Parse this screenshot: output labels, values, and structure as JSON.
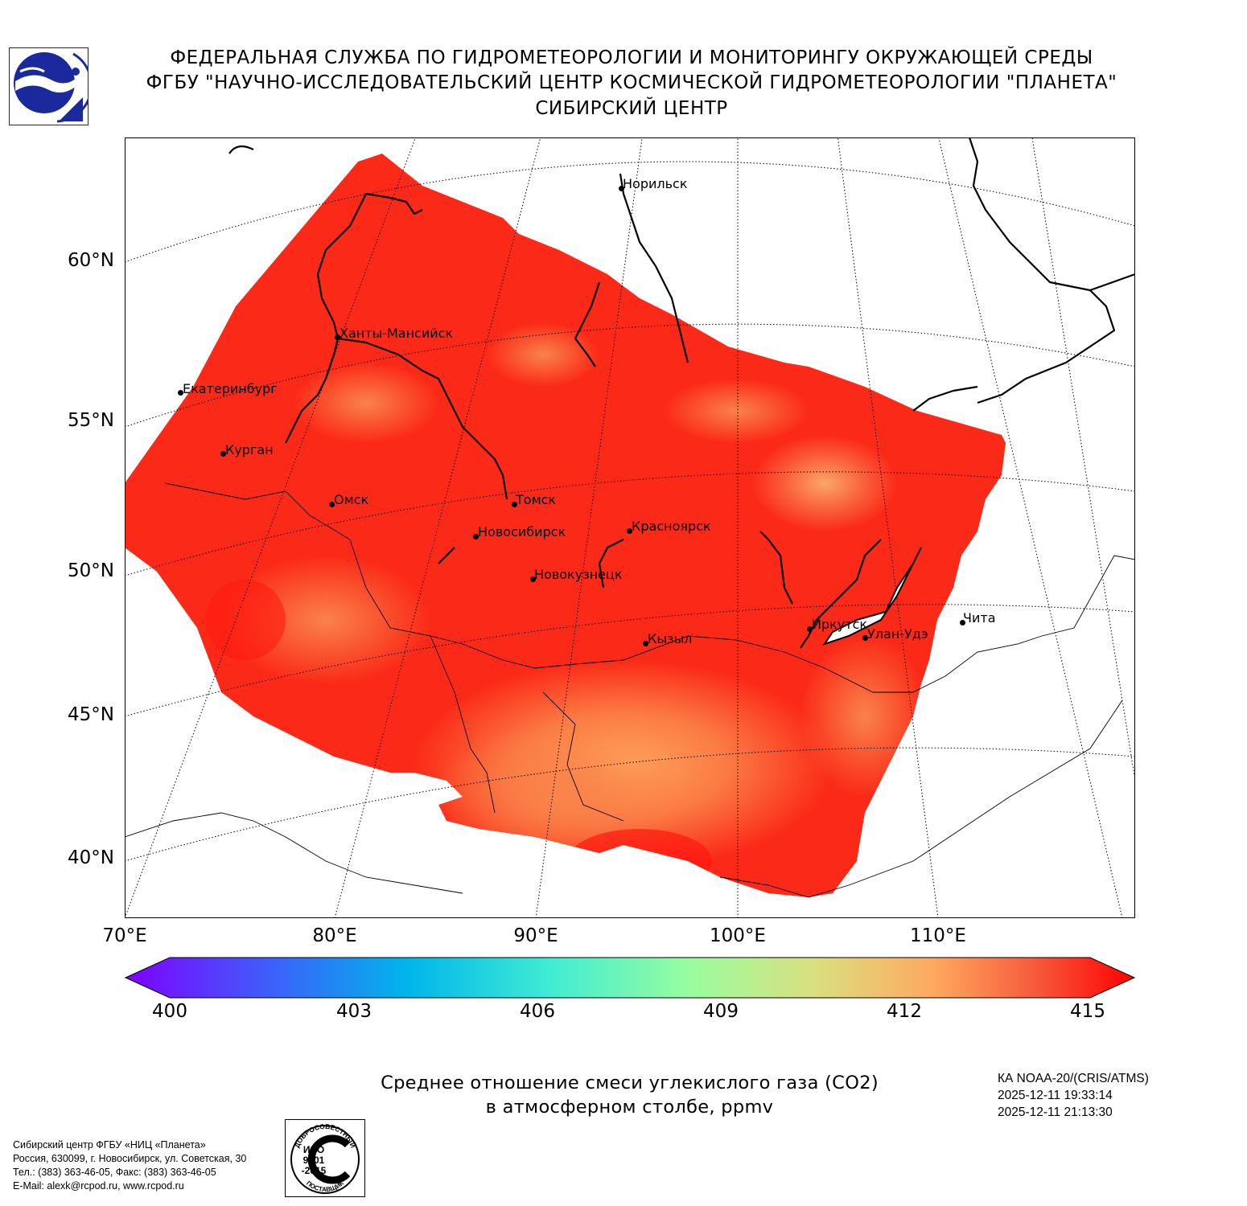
{
  "header": {
    "line1": "ФЕДЕРАЛЬНАЯ СЛУЖБА ПО ГИДРОМЕТЕОРОЛОГИИ И МОНИТОРИНГУ ОКРУЖАЮЩЕЙ СРЕДЫ",
    "line2": "ФГБУ \"НАУЧНО-ИССЛЕДОВАТЕЛЬСКИЙ ЦЕНТР КОСМИЧЕСКОЙ ГИДРОМЕТЕОРОЛОГИИ \"ПЛАНЕТА\"",
    "line3": "СИБИРСКИЙ ЦЕНТР"
  },
  "map": {
    "lat_labels": [
      "60°N",
      "55°N",
      "50°N",
      "45°N",
      "40°N"
    ],
    "lon_labels": [
      "70°E",
      "80°E",
      "90°E",
      "100°E",
      "110°E"
    ],
    "cities": [
      "Норильск",
      "Ханты-Мансийск",
      "Екатеринбург",
      "Курган",
      "Омск",
      "Томск",
      "Новосибирск",
      "Красноярск",
      "Новокузнецк",
      "Иркутск",
      "Улан-Удэ",
      "Чита",
      "Кызыл"
    ]
  },
  "colorbar": {
    "ticks": [
      "400",
      "403",
      "406",
      "409",
      "412",
      "415"
    ],
    "colors": {
      "min": "#7f00ff",
      "c1": "#3f5dfa",
      "c2": "#00b5eb",
      "c3": "#40ecd3",
      "c4": "#99fd9f",
      "c5": "#d9e080",
      "c6": "#ffa960",
      "c7": "#f65c3c",
      "max": "#ff0000"
    }
  },
  "title": {
    "line1": "Среднее отношение смеси углекислого газа (CO2)",
    "line2": "в атмосферном столбе, ppmv"
  },
  "satellite": {
    "name": "КА NOAA-20/(CRIS/ATMS)",
    "time_start": "2025-12-11 19:33:14",
    "time_end": "2025-12-11 21:13:30"
  },
  "address": {
    "line1": "Сибирский центр ФГБУ «НИЦ «Планета»",
    "line2": "Россия, 630099, г. Новосибирск, ул. Советская, 30",
    "line3": "Тел.: (383) 363-46-05, Факс: (383) 363-46-05",
    "line4": "E-Mail: alexk@rcpod.ru, www.rcpod.ru"
  },
  "iso_badge": {
    "top_text": "ДОБРОСОВЕСТНЫЙ",
    "line1": "ИСО",
    "line2": "9001",
    "line3": "-2015",
    "bottom_text": "ПОСТАВЩИК"
  }
}
